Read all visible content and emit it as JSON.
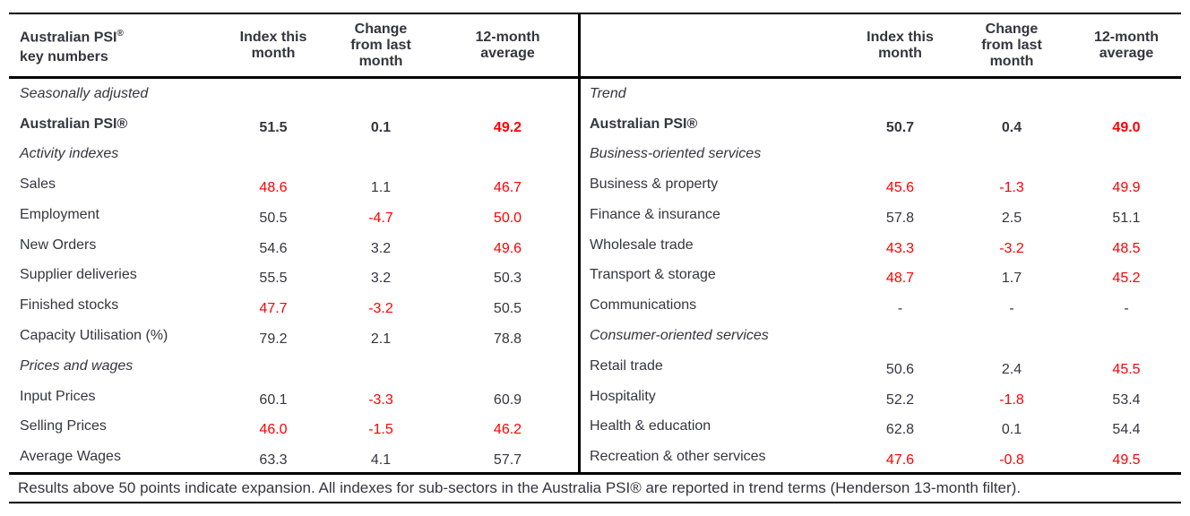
{
  "colors": {
    "text": "#35353f",
    "negative_value": "#ff0000",
    "border": "#000000",
    "background": "#ffffff"
  },
  "column_headers": [
    "Index this\nmonth",
    "Change\nfrom last\nmonth",
    "12-month\naverage"
  ],
  "left_panel": {
    "title_line1": "Australian PSI",
    "title_sup": "®",
    "title_line2": "key numbers",
    "rows": [
      {
        "label": "Seasonally adjusted",
        "style": "section"
      },
      {
        "label": "Australian PSI®",
        "style": "bold",
        "values": [
          {
            "v": "51.5",
            "red": false
          },
          {
            "v": "0.1",
            "red": false
          },
          {
            "v": "49.2",
            "red": true
          }
        ]
      },
      {
        "label": "Activity indexes",
        "style": "section"
      },
      {
        "label": "Sales",
        "style": "normal",
        "values": [
          {
            "v": "48.6",
            "red": true
          },
          {
            "v": "1.1",
            "red": false
          },
          {
            "v": "46.7",
            "red": true
          }
        ]
      },
      {
        "label": "Employment",
        "style": "normal",
        "values": [
          {
            "v": "50.5",
            "red": false
          },
          {
            "v": "-4.7",
            "red": true
          },
          {
            "v": "50.0",
            "red": true
          }
        ]
      },
      {
        "label": "New Orders",
        "style": "normal",
        "values": [
          {
            "v": "54.6",
            "red": false
          },
          {
            "v": "3.2",
            "red": false
          },
          {
            "v": "49.6",
            "red": true
          }
        ]
      },
      {
        "label": "Supplier deliveries",
        "style": "normal",
        "values": [
          {
            "v": "55.5",
            "red": false
          },
          {
            "v": "3.2",
            "red": false
          },
          {
            "v": "50.3",
            "red": false
          }
        ]
      },
      {
        "label": "Finished stocks",
        "style": "normal",
        "values": [
          {
            "v": "47.7",
            "red": true
          },
          {
            "v": "-3.2",
            "red": true
          },
          {
            "v": "50.5",
            "red": false
          }
        ]
      },
      {
        "label": "Capacity Utilisation (%)",
        "style": "normal",
        "values": [
          {
            "v": "79.2",
            "red": false
          },
          {
            "v": "2.1",
            "red": false
          },
          {
            "v": "78.8",
            "red": false
          }
        ]
      },
      {
        "label": "Prices and wages",
        "style": "section"
      },
      {
        "label": "Input Prices",
        "style": "normal",
        "values": [
          {
            "v": "60.1",
            "red": false
          },
          {
            "v": "-3.3",
            "red": true
          },
          {
            "v": "60.9",
            "red": false
          }
        ]
      },
      {
        "label": "Selling Prices",
        "style": "normal",
        "values": [
          {
            "v": "46.0",
            "red": true
          },
          {
            "v": "-1.5",
            "red": true
          },
          {
            "v": "46.2",
            "red": true
          }
        ]
      },
      {
        "label": "Average Wages",
        "style": "normal",
        "values": [
          {
            "v": "63.3",
            "red": false
          },
          {
            "v": "4.1",
            "red": false
          },
          {
            "v": "57.7",
            "red": false
          }
        ]
      }
    ]
  },
  "right_panel": {
    "rows": [
      {
        "label": "Trend",
        "style": "section"
      },
      {
        "label": "Australian PSI®",
        "style": "bold",
        "values": [
          {
            "v": "50.7",
            "red": false
          },
          {
            "v": "0.4",
            "red": false
          },
          {
            "v": "49.0",
            "red": true
          }
        ]
      },
      {
        "label": "Business-oriented services",
        "style": "section"
      },
      {
        "label": "Business & property",
        "style": "normal",
        "values": [
          {
            "v": "45.6",
            "red": true
          },
          {
            "v": "-1.3",
            "red": true
          },
          {
            "v": "49.9",
            "red": true
          }
        ]
      },
      {
        "label": "Finance & insurance",
        "style": "normal",
        "values": [
          {
            "v": "57.8",
            "red": false
          },
          {
            "v": "2.5",
            "red": false
          },
          {
            "v": "51.1",
            "red": false
          }
        ]
      },
      {
        "label": "Wholesale trade",
        "style": "normal",
        "values": [
          {
            "v": "43.3",
            "red": true
          },
          {
            "v": "-3.2",
            "red": true
          },
          {
            "v": "48.5",
            "red": true
          }
        ]
      },
      {
        "label": "Transport & storage",
        "style": "normal",
        "values": [
          {
            "v": "48.7",
            "red": true
          },
          {
            "v": "1.7",
            "red": false
          },
          {
            "v": "45.2",
            "red": true
          }
        ]
      },
      {
        "label": "Communications",
        "style": "normal",
        "values": [
          {
            "v": "-",
            "red": false
          },
          {
            "v": "-",
            "red": false
          },
          {
            "v": "-",
            "red": false
          }
        ]
      },
      {
        "label": "Consumer-oriented services",
        "style": "section"
      },
      {
        "label": "Retail trade",
        "style": "normal",
        "values": [
          {
            "v": "50.6",
            "red": false
          },
          {
            "v": "2.4",
            "red": false
          },
          {
            "v": "45.5",
            "red": true
          }
        ]
      },
      {
        "label": "Hospitality",
        "style": "normal",
        "values": [
          {
            "v": "52.2",
            "red": false
          },
          {
            "v": "-1.8",
            "red": true
          },
          {
            "v": "53.4",
            "red": false
          }
        ]
      },
      {
        "label": "Health & education",
        "style": "normal",
        "values": [
          {
            "v": "62.8",
            "red": false
          },
          {
            "v": "0.1",
            "red": false
          },
          {
            "v": "54.4",
            "red": false
          }
        ]
      },
      {
        "label": "Recreation & other services",
        "style": "normal",
        "values": [
          {
            "v": "47.6",
            "red": true
          },
          {
            "v": "-0.8",
            "red": true
          },
          {
            "v": "49.5",
            "red": true
          }
        ]
      }
    ]
  },
  "footer": {
    "note": "Results above 50 points indicate expansion. All indexes for sub-sectors in the Australia PSI® are reported in trend terms (Henderson 13-month filter)."
  }
}
